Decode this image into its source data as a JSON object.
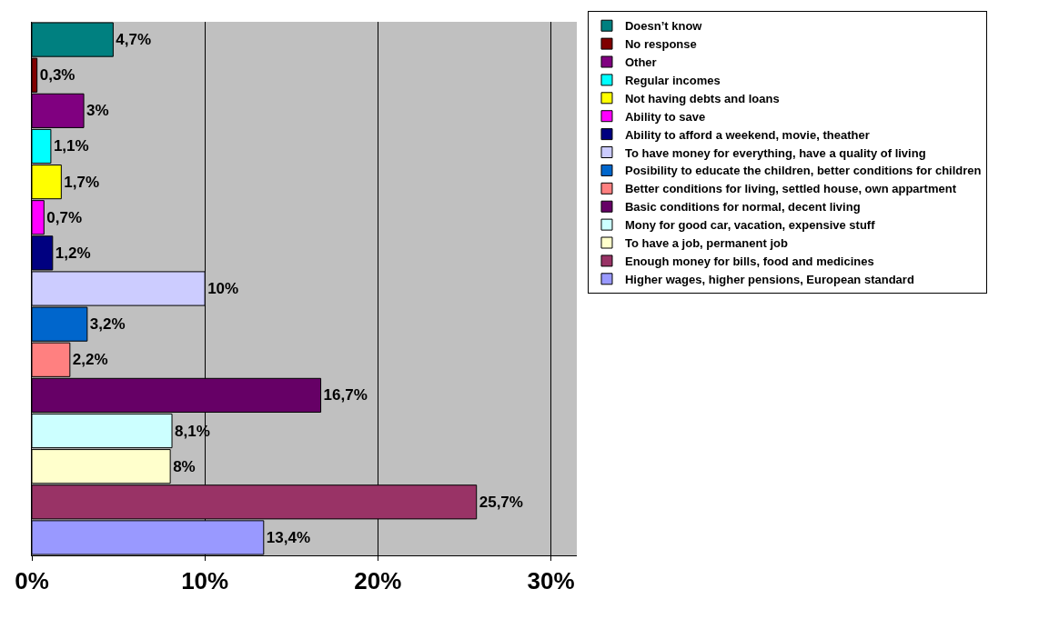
{
  "chart_data": {
    "type": "bar",
    "orientation": "horizontal",
    "categories": [
      null,
      null,
      null,
      null,
      null,
      null,
      null,
      null,
      null,
      null,
      null,
      null,
      null,
      null,
      null
    ],
    "series": [
      {
        "name": "Doesn’t know",
        "color": "#008080",
        "values": [
          4.7,
          null,
          null,
          null,
          null,
          null,
          null,
          null,
          null,
          null,
          null,
          null,
          null,
          null,
          null
        ],
        "value_labels": [
          "4,7%",
          null,
          null,
          null,
          null,
          null,
          null,
          null,
          null,
          null,
          null,
          null,
          null,
          null,
          null
        ]
      },
      {
        "name": "No response",
        "color": "#800000",
        "values": [
          null,
          0.3,
          null,
          null,
          null,
          null,
          null,
          null,
          null,
          null,
          null,
          null,
          null,
          null,
          null
        ],
        "value_labels": [
          null,
          "0,3%",
          null,
          null,
          null,
          null,
          null,
          null,
          null,
          null,
          null,
          null,
          null,
          null,
          null
        ]
      },
      {
        "name": "Other",
        "color": "#800080",
        "values": [
          null,
          null,
          3,
          null,
          null,
          null,
          null,
          null,
          null,
          null,
          null,
          null,
          null,
          null,
          null
        ],
        "value_labels": [
          null,
          null,
          "3%",
          null,
          null,
          null,
          null,
          null,
          null,
          null,
          null,
          null,
          null,
          null,
          null
        ]
      },
      {
        "name": "Regular incomes",
        "color": "#00ffff",
        "values": [
          null,
          null,
          null,
          1.1,
          null,
          null,
          null,
          null,
          null,
          null,
          null,
          null,
          null,
          null,
          null
        ],
        "value_labels": [
          null,
          null,
          null,
          "1,1%",
          null,
          null,
          null,
          null,
          null,
          null,
          null,
          null,
          null,
          null,
          null
        ]
      },
      {
        "name": "Not having debts and loans",
        "color": "#ffff00",
        "values": [
          null,
          null,
          null,
          null,
          1.7,
          null,
          null,
          null,
          null,
          null,
          null,
          null,
          null,
          null,
          null
        ],
        "value_labels": [
          null,
          null,
          null,
          null,
          "1,7%",
          null,
          null,
          null,
          null,
          null,
          null,
          null,
          null,
          null,
          null
        ]
      },
      {
        "name": "Ability to save",
        "color": "#ff00ff",
        "values": [
          null,
          null,
          null,
          null,
          null,
          0.7,
          null,
          null,
          null,
          null,
          null,
          null,
          null,
          null,
          null
        ],
        "value_labels": [
          null,
          null,
          null,
          null,
          null,
          "0,7%",
          null,
          null,
          null,
          null,
          null,
          null,
          null,
          null,
          null
        ]
      },
      {
        "name": "Ability to afford a weekend, movie, theather",
        "color": "#000080",
        "values": [
          null,
          null,
          null,
          null,
          null,
          null,
          1.2,
          null,
          null,
          null,
          null,
          null,
          null,
          null,
          null
        ],
        "value_labels": [
          null,
          null,
          null,
          null,
          null,
          null,
          "1,2%",
          null,
          null,
          null,
          null,
          null,
          null,
          null,
          null
        ]
      },
      {
        "name": "To have money for everything, have a quality of living",
        "color": "#ccccff",
        "values": [
          null,
          null,
          null,
          null,
          null,
          null,
          null,
          10,
          null,
          null,
          null,
          null,
          null,
          null,
          null
        ],
        "value_labels": [
          null,
          null,
          null,
          null,
          null,
          null,
          null,
          "10%",
          null,
          null,
          null,
          null,
          null,
          null,
          null
        ]
      },
      {
        "name": "Posibility to educate the children, better conditions for children",
        "color": "#0066cc",
        "values": [
          null,
          null,
          null,
          null,
          null,
          null,
          null,
          null,
          3.2,
          null,
          null,
          null,
          null,
          null,
          null
        ],
        "value_labels": [
          null,
          null,
          null,
          null,
          null,
          null,
          null,
          null,
          "3,2%",
          null,
          null,
          null,
          null,
          null,
          null
        ]
      },
      {
        "name": "Better conditions for living, settled house, own appartment",
        "color": "#ff8080",
        "values": [
          null,
          null,
          null,
          null,
          null,
          null,
          null,
          null,
          null,
          2.2,
          null,
          null,
          null,
          null,
          null
        ],
        "value_labels": [
          null,
          null,
          null,
          null,
          null,
          null,
          null,
          null,
          null,
          "2,2%",
          null,
          null,
          null,
          null,
          null
        ]
      },
      {
        "name": "Basic conditions for normal, decent living",
        "color": "#660066",
        "values": [
          null,
          null,
          null,
          null,
          null,
          null,
          null,
          null,
          null,
          null,
          16.7,
          null,
          null,
          null,
          null
        ],
        "value_labels": [
          null,
          null,
          null,
          null,
          null,
          null,
          null,
          null,
          null,
          null,
          "16,7%",
          null,
          null,
          null,
          null
        ]
      },
      {
        "name": "Mony for good car, vacation, expensive stuff",
        "color": "#ccffff",
        "values": [
          null,
          null,
          null,
          null,
          null,
          null,
          null,
          null,
          null,
          null,
          null,
          8.1,
          null,
          null,
          null
        ],
        "value_labels": [
          null,
          null,
          null,
          null,
          null,
          null,
          null,
          null,
          null,
          null,
          null,
          "8,1%",
          null,
          null,
          null
        ]
      },
      {
        "name": "To have a job, permanent job",
        "color": "#ffffcc",
        "values": [
          null,
          null,
          null,
          null,
          null,
          null,
          null,
          null,
          null,
          null,
          null,
          null,
          8,
          null,
          null
        ],
        "value_labels": [
          null,
          null,
          null,
          null,
          null,
          null,
          null,
          null,
          null,
          null,
          null,
          null,
          "8%",
          null,
          null
        ]
      },
      {
        "name": "Enough money for bills, food and medicines",
        "color": "#993366",
        "values": [
          null,
          null,
          null,
          null,
          null,
          null,
          null,
          null,
          null,
          null,
          null,
          null,
          null,
          25.7,
          null
        ],
        "value_labels": [
          null,
          null,
          null,
          null,
          null,
          null,
          null,
          null,
          null,
          null,
          null,
          null,
          null,
          "25,7%",
          null
        ]
      },
      {
        "name": "Higher wages, higher pensions, European standard",
        "color": "#9999ff",
        "values": [
          null,
          null,
          null,
          null,
          null,
          null,
          null,
          null,
          null,
          null,
          null,
          null,
          null,
          null,
          13.4
        ],
        "value_labels": [
          null,
          null,
          null,
          null,
          null,
          null,
          null,
          null,
          null,
          null,
          null,
          null,
          null,
          null,
          "13,4%"
        ]
      }
    ],
    "xlim": [
      0,
      31.5
    ],
    "xticks": [
      {
        "value": 0,
        "label": "0%"
      },
      {
        "value": 10,
        "label": "10%"
      },
      {
        "value": 20,
        "label": "20%"
      },
      {
        "value": 30,
        "label": "30%"
      }
    ],
    "grid": "x",
    "legend": "right"
  }
}
